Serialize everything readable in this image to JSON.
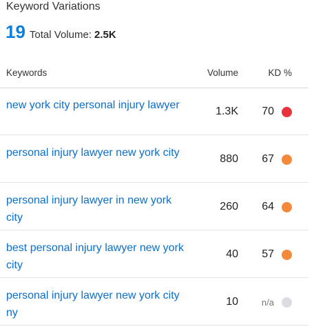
{
  "header": {
    "title": "Keyword Variations",
    "count": "19",
    "total_volume_label": "Total Volume:",
    "total_volume_value": "2.5K"
  },
  "table": {
    "columns": {
      "keywords": "Keywords",
      "volume": "Volume",
      "kd": "KD %"
    },
    "rows": [
      {
        "keyword": "new york city personal injury lawyer",
        "volume": "1.3K",
        "kd": "70",
        "kd_color": "#e8323c"
      },
      {
        "keyword": "personal injury lawyer new york city",
        "volume": "880",
        "kd": "67",
        "kd_color": "#f5893a"
      },
      {
        "keyword": "personal injury lawyer in new york city",
        "volume": "260",
        "kd": "64",
        "kd_color": "#f5893a"
      },
      {
        "keyword": "best personal injury lawyer new york city",
        "volume": "40",
        "kd": "57",
        "kd_color": "#f5893a"
      },
      {
        "keyword": "personal injury lawyer new york city ny",
        "volume": "10",
        "kd": "n/a",
        "kd_color": "#dcdde2"
      }
    ]
  }
}
